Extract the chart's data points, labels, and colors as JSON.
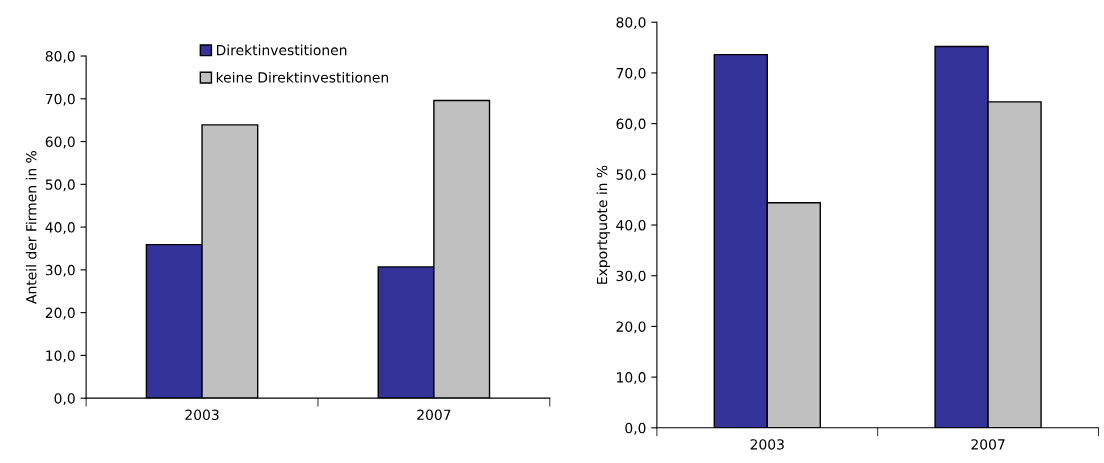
{
  "chart_data": [
    {
      "type": "bar",
      "categories": [
        "2003",
        "2007"
      ],
      "ylabel": "Anteil der Firmen in %",
      "ylim": [
        0,
        80
      ],
      "yticks": [
        {
          "value": 0,
          "label": "0,0"
        },
        {
          "value": 10,
          "label": "10,0"
        },
        {
          "value": 20,
          "label": "20,0"
        },
        {
          "value": 30,
          "label": "30,0"
        },
        {
          "value": 40,
          "label": "40,0"
        },
        {
          "value": 50,
          "label": "50,0"
        },
        {
          "value": 60,
          "label": "60,0"
        },
        {
          "value": 70,
          "label": "70,0"
        },
        {
          "value": 80,
          "label": "80,0"
        }
      ],
      "series": [
        {
          "name": "Direktinvestitionen",
          "color": "#333399",
          "values": [
            35.9,
            30.7
          ]
        },
        {
          "name": "keine Direktinvestitionen",
          "color": "#c0c0c0",
          "values": [
            63.9,
            69.6
          ]
        }
      ],
      "grid": false,
      "legend": "top"
    },
    {
      "type": "bar",
      "categories": [
        "2003",
        "2007"
      ],
      "ylabel": "Exportquote in %",
      "ylim": [
        0,
        80
      ],
      "yticks": [
        {
          "value": 0,
          "label": "0,0"
        },
        {
          "value": 10,
          "label": "10,0"
        },
        {
          "value": 20,
          "label": "20,0"
        },
        {
          "value": 30,
          "label": "30,0"
        },
        {
          "value": 40,
          "label": "40,0"
        },
        {
          "value": 50,
          "label": "50,0"
        },
        {
          "value": 60,
          "label": "60,0"
        },
        {
          "value": 70,
          "label": "70,0"
        },
        {
          "value": 80,
          "label": "80,0"
        }
      ],
      "series": [
        {
          "color": "#333399",
          "values": [
            73.6,
            75.2
          ]
        },
        {
          "color": "#c0c0c0",
          "values": [
            44.4,
            64.3
          ]
        }
      ],
      "grid": false,
      "legend": false
    }
  ]
}
